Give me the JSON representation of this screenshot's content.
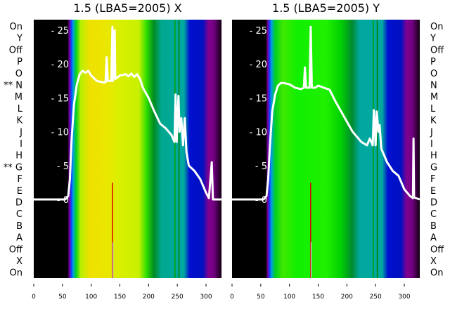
{
  "chart_data": [
    {
      "type": "heatmap",
      "title": "1.5 (LBA5=2005) X",
      "xlim": [
        0,
        327
      ],
      "ylim": [
        0,
        27
      ],
      "xticks": [
        "0",
        "50",
        "100",
        "150",
        "200",
        "250",
        "300"
      ],
      "yticks": [
        "0",
        "5",
        "10",
        "15",
        "20",
        "25"
      ],
      "rows": [
        "On",
        "Y",
        "Off",
        "P",
        "O",
        "** N",
        "M",
        "L",
        "K",
        "J",
        "I",
        "H",
        "** G",
        "F",
        "E",
        "D",
        "C",
        "B",
        "A",
        "Off",
        "X",
        "On"
      ],
      "spectrum": {
        "x": [
          0,
          55,
          60,
          63,
          66,
          70,
          75,
          80,
          85,
          90,
          95,
          100,
          110,
          120,
          125,
          127,
          129,
          135,
          137,
          138,
          141,
          142,
          150,
          160,
          165,
          170,
          175,
          180,
          185,
          190,
          200,
          210,
          220,
          230,
          240,
          245,
          247,
          249,
          252,
          254,
          257,
          260,
          263,
          266,
          270,
          280,
          290,
          300,
          305,
          310,
          312,
          327
        ],
        "y": [
          0,
          0,
          0.5,
          3,
          9,
          14,
          17,
          18.5,
          19,
          18.7,
          19,
          18.3,
          17.5,
          17.3,
          17.3,
          21,
          17.5,
          17.5,
          25.5,
          17.5,
          25,
          17.8,
          18.3,
          18.5,
          18.2,
          18.6,
          18.1,
          18.5,
          17.8,
          16.5,
          15,
          13,
          11.2,
          10.5,
          9.5,
          8.5,
          15.5,
          8.5,
          15.3,
          10,
          12,
          8,
          12,
          7,
          5,
          4.2,
          3,
          1,
          0.2,
          5.5,
          0,
          0
        ]
      }
    },
    {
      "type": "heatmap",
      "title": "1.5 (LBA5=2005) Y",
      "xlim": [
        0,
        327
      ],
      "ylim": [
        0,
        27
      ],
      "xticks": [
        "0",
        "50",
        "100",
        "150",
        "200",
        "250",
        "300"
      ],
      "yticks": [
        "0",
        "5",
        "10",
        "15",
        "20",
        "25"
      ],
      "rows": [
        "On",
        "Y",
        "Off",
        "P",
        "O",
        "N",
        "M",
        "L",
        "K",
        "J",
        "I",
        "H",
        "G",
        "F",
        "E",
        "D",
        "C",
        "B",
        "A",
        "Off",
        "X",
        "On"
      ],
      "spectrum": {
        "x": [
          0,
          55,
          60,
          63,
          66,
          70,
          75,
          80,
          85,
          90,
          100,
          110,
          120,
          125,
          127,
          129,
          135,
          137,
          139,
          145,
          150,
          160,
          170,
          180,
          190,
          200,
          210,
          220,
          225,
          235,
          240,
          245,
          247,
          250,
          252,
          255,
          257,
          260,
          265,
          270,
          280,
          290,
          300,
          310,
          315,
          316,
          317,
          327
        ],
        "y": [
          0,
          0,
          0.5,
          3,
          8,
          13,
          15.5,
          16.8,
          17.2,
          17.2,
          17,
          16.5,
          16.3,
          16.5,
          19.5,
          16.5,
          16.5,
          25.5,
          16.5,
          16.5,
          16.8,
          16.5,
          16.2,
          14.5,
          13,
          11.5,
          10,
          9,
          8.5,
          8,
          9,
          8,
          13.2,
          8,
          13,
          10,
          11,
          7.5,
          6.5,
          5.5,
          4.2,
          3.5,
          1.5,
          0.5,
          0.2,
          9,
          0.3,
          0
        ]
      }
    }
  ]
}
